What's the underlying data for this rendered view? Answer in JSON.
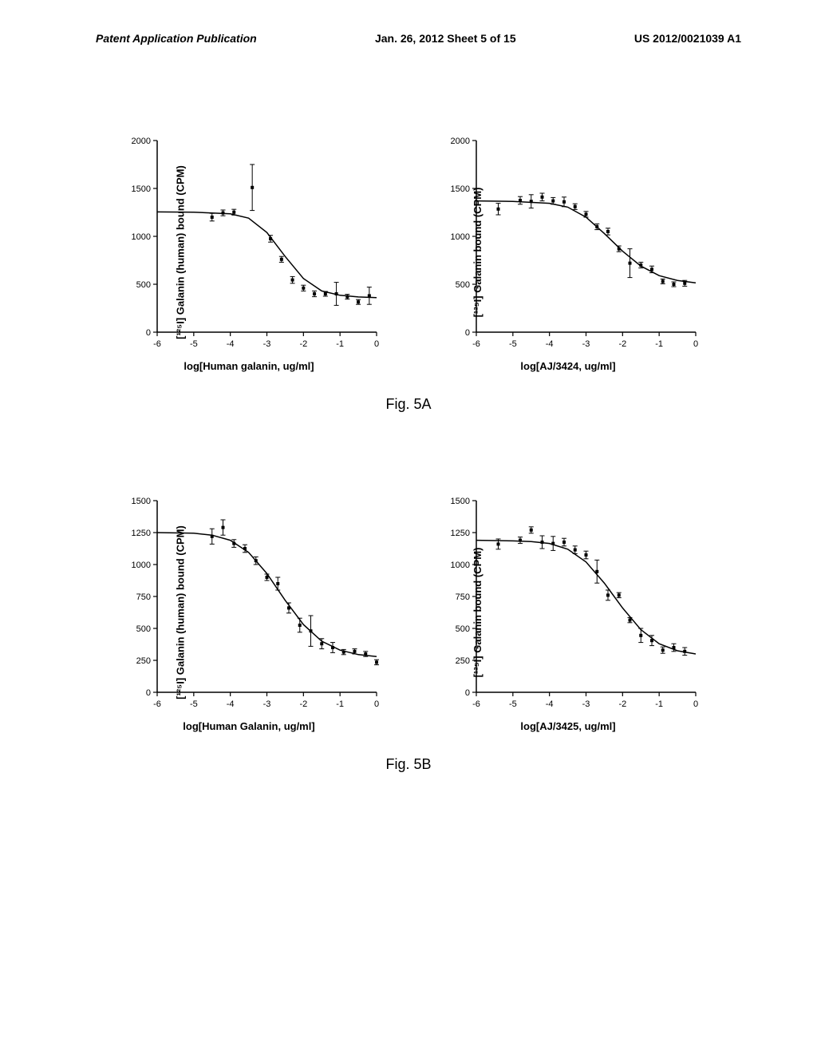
{
  "header": {
    "left": "Patent Application Publication",
    "middle": "Jan. 26, 2012  Sheet 5 of 15",
    "right": "US 2012/0021039 A1"
  },
  "fig5a": {
    "caption": "Fig. 5A",
    "caption_fontsize": 18,
    "chart1": {
      "type": "scatter-line",
      "xlabel": "log[Human galanin, ug/ml]",
      "ylabel": "[¹²⁵I] Galanin (human) bound (CPM)",
      "xlim": [
        -6,
        0
      ],
      "ylim": [
        0,
        2000
      ],
      "xticks": [
        -6,
        -5,
        -4,
        -3,
        -2,
        -1,
        0
      ],
      "yticks": [
        0,
        500,
        1000,
        1500,
        2000
      ],
      "axis_color": "#000000",
      "background_color": "#ffffff",
      "marker_color": "#000000",
      "line_color": "#000000",
      "line_width": 1.5,
      "marker_size": 4,
      "fontsize_tick": 11,
      "fontsize_label": 13,
      "curve": [
        {
          "x": -6,
          "y": 1255
        },
        {
          "x": -5,
          "y": 1252
        },
        {
          "x": -4,
          "y": 1235
        },
        {
          "x": -3.5,
          "y": 1190
        },
        {
          "x": -3,
          "y": 1040
        },
        {
          "x": -2.5,
          "y": 790
        },
        {
          "x": -2,
          "y": 560
        },
        {
          "x": -1.5,
          "y": 430
        },
        {
          "x": -1,
          "y": 385
        },
        {
          "x": -0.5,
          "y": 368
        },
        {
          "x": 0,
          "y": 360
        }
      ],
      "data": [
        {
          "x": -4.5,
          "y": 1200,
          "err": 40
        },
        {
          "x": -4.2,
          "y": 1245,
          "err": 30
        },
        {
          "x": -3.9,
          "y": 1252,
          "err": 30
        },
        {
          "x": -3.4,
          "y": 1510,
          "err": 240
        },
        {
          "x": -2.9,
          "y": 975,
          "err": 35
        },
        {
          "x": -2.6,
          "y": 760,
          "err": 30
        },
        {
          "x": -2.3,
          "y": 545,
          "err": 35
        },
        {
          "x": -2.0,
          "y": 460,
          "err": 30
        },
        {
          "x": -1.7,
          "y": 400,
          "err": 30
        },
        {
          "x": -1.4,
          "y": 400,
          "err": 25
        },
        {
          "x": -1.1,
          "y": 400,
          "err": 120
        },
        {
          "x": -0.8,
          "y": 370,
          "err": 25
        },
        {
          "x": -0.5,
          "y": 315,
          "err": 25
        },
        {
          "x": -0.2,
          "y": 380,
          "err": 90
        }
      ]
    },
    "chart2": {
      "type": "scatter-line",
      "xlabel": "log[AJ/3424, ug/ml]",
      "ylabel": "[¹²⁵I] Galanin bound (CPM)",
      "xlim": [
        -6,
        0
      ],
      "ylim": [
        0,
        2000
      ],
      "xticks": [
        -6,
        -5,
        -4,
        -3,
        -2,
        -1,
        0
      ],
      "yticks": [
        0,
        500,
        1000,
        1500,
        2000
      ],
      "axis_color": "#000000",
      "background_color": "#ffffff",
      "marker_color": "#000000",
      "line_color": "#000000",
      "line_width": 1.5,
      "marker_size": 4,
      "fontsize_tick": 11,
      "fontsize_label": 13,
      "curve": [
        {
          "x": -6,
          "y": 1370
        },
        {
          "x": -5,
          "y": 1365
        },
        {
          "x": -4,
          "y": 1345
        },
        {
          "x": -3.5,
          "y": 1305
        },
        {
          "x": -3,
          "y": 1200
        },
        {
          "x": -2.5,
          "y": 1030
        },
        {
          "x": -2,
          "y": 845
        },
        {
          "x": -1.5,
          "y": 690
        },
        {
          "x": -1,
          "y": 590
        },
        {
          "x": -0.5,
          "y": 540
        },
        {
          "x": 0,
          "y": 515
        }
      ],
      "data": [
        {
          "x": -5.4,
          "y": 1285,
          "err": 60
        },
        {
          "x": -4.8,
          "y": 1375,
          "err": 40
        },
        {
          "x": -4.5,
          "y": 1365,
          "err": 70
        },
        {
          "x": -4.2,
          "y": 1410,
          "err": 40
        },
        {
          "x": -3.9,
          "y": 1370,
          "err": 35
        },
        {
          "x": -3.6,
          "y": 1360,
          "err": 50
        },
        {
          "x": -3.3,
          "y": 1310,
          "err": 30
        },
        {
          "x": -3.0,
          "y": 1230,
          "err": 30
        },
        {
          "x": -2.7,
          "y": 1100,
          "err": 30
        },
        {
          "x": -2.4,
          "y": 1050,
          "err": 35
        },
        {
          "x": -2.1,
          "y": 870,
          "err": 30
        },
        {
          "x": -1.8,
          "y": 720,
          "err": 150
        },
        {
          "x": -1.5,
          "y": 700,
          "err": 30
        },
        {
          "x": -1.2,
          "y": 655,
          "err": 35
        },
        {
          "x": -0.9,
          "y": 530,
          "err": 25
        },
        {
          "x": -0.6,
          "y": 500,
          "err": 25
        },
        {
          "x": -0.3,
          "y": 510,
          "err": 30
        }
      ]
    }
  },
  "fig5b": {
    "caption": "Fig. 5B",
    "caption_fontsize": 18,
    "chart1": {
      "type": "scatter-line",
      "xlabel": "log[Human Galanin, ug/ml]",
      "ylabel": "[¹²⁵I] Galanin (human) bound (CPM)",
      "xlim": [
        -6,
        0
      ],
      "ylim": [
        0,
        1500
      ],
      "xticks": [
        -6,
        -5,
        -4,
        -3,
        -2,
        -1,
        0
      ],
      "yticks": [
        0,
        250,
        500,
        750,
        1000,
        1250,
        1500
      ],
      "axis_color": "#000000",
      "background_color": "#ffffff",
      "marker_color": "#000000",
      "line_color": "#000000",
      "line_width": 1.5,
      "marker_size": 4,
      "fontsize_tick": 11,
      "fontsize_label": 13,
      "curve": [
        {
          "x": -6,
          "y": 1250
        },
        {
          "x": -5,
          "y": 1245
        },
        {
          "x": -4.5,
          "y": 1230
        },
        {
          "x": -4,
          "y": 1190
        },
        {
          "x": -3.5,
          "y": 1095
        },
        {
          "x": -3,
          "y": 930
        },
        {
          "x": -2.5,
          "y": 720
        },
        {
          "x": -2,
          "y": 530
        },
        {
          "x": -1.5,
          "y": 400
        },
        {
          "x": -1,
          "y": 330
        },
        {
          "x": -0.5,
          "y": 295
        },
        {
          "x": 0,
          "y": 280
        }
      ],
      "data": [
        {
          "x": -4.5,
          "y": 1220,
          "err": 60
        },
        {
          "x": -4.2,
          "y": 1290,
          "err": 60
        },
        {
          "x": -3.9,
          "y": 1165,
          "err": 30
        },
        {
          "x": -3.6,
          "y": 1125,
          "err": 30
        },
        {
          "x": -3.3,
          "y": 1030,
          "err": 30
        },
        {
          "x": -3.0,
          "y": 900,
          "err": 25
        },
        {
          "x": -2.7,
          "y": 850,
          "err": 50
        },
        {
          "x": -2.4,
          "y": 660,
          "err": 40
        },
        {
          "x": -2.1,
          "y": 525,
          "err": 55
        },
        {
          "x": -1.8,
          "y": 480,
          "err": 120
        },
        {
          "x": -1.5,
          "y": 380,
          "err": 40
        },
        {
          "x": -1.2,
          "y": 350,
          "err": 40
        },
        {
          "x": -0.9,
          "y": 315,
          "err": 20
        },
        {
          "x": -0.6,
          "y": 320,
          "err": 20
        },
        {
          "x": -0.3,
          "y": 300,
          "err": 20
        },
        {
          "x": 0,
          "y": 235,
          "err": 20
        }
      ]
    },
    "chart2": {
      "type": "scatter-line",
      "xlabel": "log[AJ/3425, ug/ml]",
      "ylabel": "[¹²⁵I] Galanin bound (CPM)",
      "xlim": [
        -6,
        0
      ],
      "ylim": [
        0,
        1500
      ],
      "xticks": [
        -6,
        -5,
        -4,
        -3,
        -2,
        -1,
        0
      ],
      "yticks": [
        0,
        250,
        500,
        750,
        1000,
        1250,
        1500
      ],
      "axis_color": "#000000",
      "background_color": "#ffffff",
      "marker_color": "#000000",
      "line_color": "#000000",
      "line_width": 1.5,
      "marker_size": 4,
      "fontsize_tick": 11,
      "fontsize_label": 13,
      "curve": [
        {
          "x": -6,
          "y": 1190
        },
        {
          "x": -5,
          "y": 1185
        },
        {
          "x": -4.5,
          "y": 1180
        },
        {
          "x": -4,
          "y": 1165
        },
        {
          "x": -3.5,
          "y": 1120
        },
        {
          "x": -3,
          "y": 1020
        },
        {
          "x": -2.5,
          "y": 855
        },
        {
          "x": -2,
          "y": 660
        },
        {
          "x": -1.5,
          "y": 490
        },
        {
          "x": -1,
          "y": 380
        },
        {
          "x": -0.5,
          "y": 325
        },
        {
          "x": 0,
          "y": 300
        }
      ],
      "data": [
        {
          "x": -5.4,
          "y": 1160,
          "err": 40
        },
        {
          "x": -4.8,
          "y": 1190,
          "err": 25
        },
        {
          "x": -4.5,
          "y": 1270,
          "err": 25
        },
        {
          "x": -4.2,
          "y": 1175,
          "err": 50
        },
        {
          "x": -3.9,
          "y": 1165,
          "err": 55
        },
        {
          "x": -3.6,
          "y": 1175,
          "err": 30
        },
        {
          "x": -3.3,
          "y": 1115,
          "err": 30
        },
        {
          "x": -3.0,
          "y": 1075,
          "err": 30
        },
        {
          "x": -2.7,
          "y": 945,
          "err": 90
        },
        {
          "x": -2.4,
          "y": 760,
          "err": 40
        },
        {
          "x": -2.1,
          "y": 760,
          "err": 20
        },
        {
          "x": -1.8,
          "y": 565,
          "err": 20
        },
        {
          "x": -1.5,
          "y": 445,
          "err": 55
        },
        {
          "x": -1.2,
          "y": 405,
          "err": 40
        },
        {
          "x": -0.9,
          "y": 330,
          "err": 25
        },
        {
          "x": -0.6,
          "y": 350,
          "err": 30
        },
        {
          "x": -0.3,
          "y": 320,
          "err": 30
        }
      ]
    }
  }
}
